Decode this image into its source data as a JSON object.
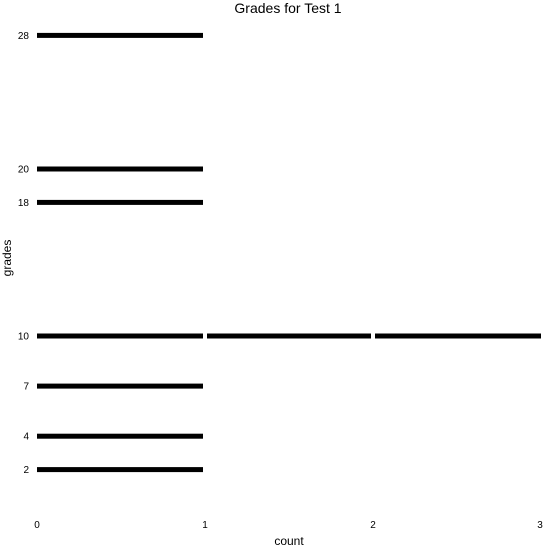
{
  "chart_data": {
    "type": "bar",
    "title": "Grades for Test 1",
    "xlabel": "count",
    "ylabel": "grades",
    "xlim": [
      0,
      3
    ],
    "ylim": [
      0,
      30
    ],
    "grid": false,
    "x_ticks": [
      "0",
      "1",
      "2",
      "3"
    ],
    "y_ticks": [
      "2",
      "4",
      "7",
      "10",
      "18",
      "20",
      "28"
    ],
    "bar_color": "#000000",
    "bars": [
      {
        "grade": 2,
        "from": 0,
        "to": 1
      },
      {
        "grade": 4,
        "from": 0,
        "to": 1
      },
      {
        "grade": 7,
        "from": 0,
        "to": 1
      },
      {
        "grade": 10,
        "from": 0,
        "to": 1
      },
      {
        "grade": 10,
        "from": 1,
        "to": 2
      },
      {
        "grade": 10,
        "from": 2,
        "to": 3
      },
      {
        "grade": 18,
        "from": 0,
        "to": 1
      },
      {
        "grade": 20,
        "from": 0,
        "to": 1
      },
      {
        "grade": 28,
        "from": 0,
        "to": 1
      }
    ]
  }
}
